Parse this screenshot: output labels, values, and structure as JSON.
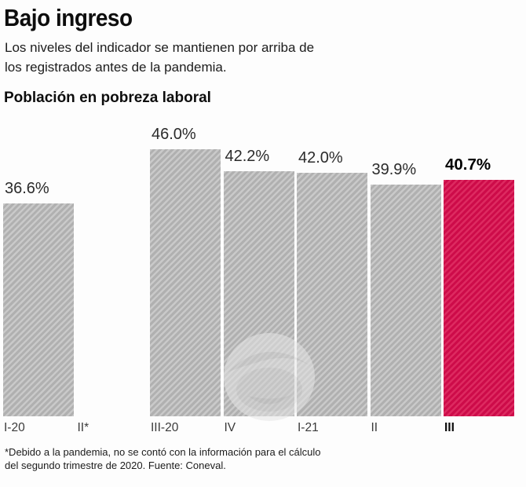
{
  "header": {
    "title": "Bajo ingreso",
    "subtitle": "Los niveles del indicador se mantienen por arriba de\nlos registrados antes de la pandemia."
  },
  "chart_title": "Población en pobreza laboral",
  "footnote": "*Debido a la pandemia, no se contó con la información para el cálculo\ndel segundo trimestre de 2020. Fuente: Coneval.",
  "colors": {
    "bar_gray_light": "#c9c9c9",
    "bar_gray_dark": "#b0b0b0",
    "bar_red_light": "#dd2a60",
    "bar_red_dark": "#cd0b49",
    "text": "#111111"
  },
  "chart_data": {
    "type": "bar",
    "title": "Población en pobreza laboral",
    "categories": [
      "I-20",
      "II*",
      "III-20",
      "IV",
      "I-21",
      "II",
      "III"
    ],
    "values": [
      36.6,
      null,
      46.0,
      42.2,
      42.0,
      39.9,
      40.7
    ],
    "value_labels": [
      "36.6%",
      null,
      "46.0%",
      "42.2%",
      "42.0%",
      "39.9%",
      "40.7%"
    ],
    "unit": "%",
    "highlight_index": 6,
    "ylim": [
      0,
      46
    ],
    "grid": false,
    "legend": "none",
    "bar_style": "diagonal-hatch",
    "missing_category_note": "II* sin barra (sin dato del segundo trimestre de 2020)"
  }
}
